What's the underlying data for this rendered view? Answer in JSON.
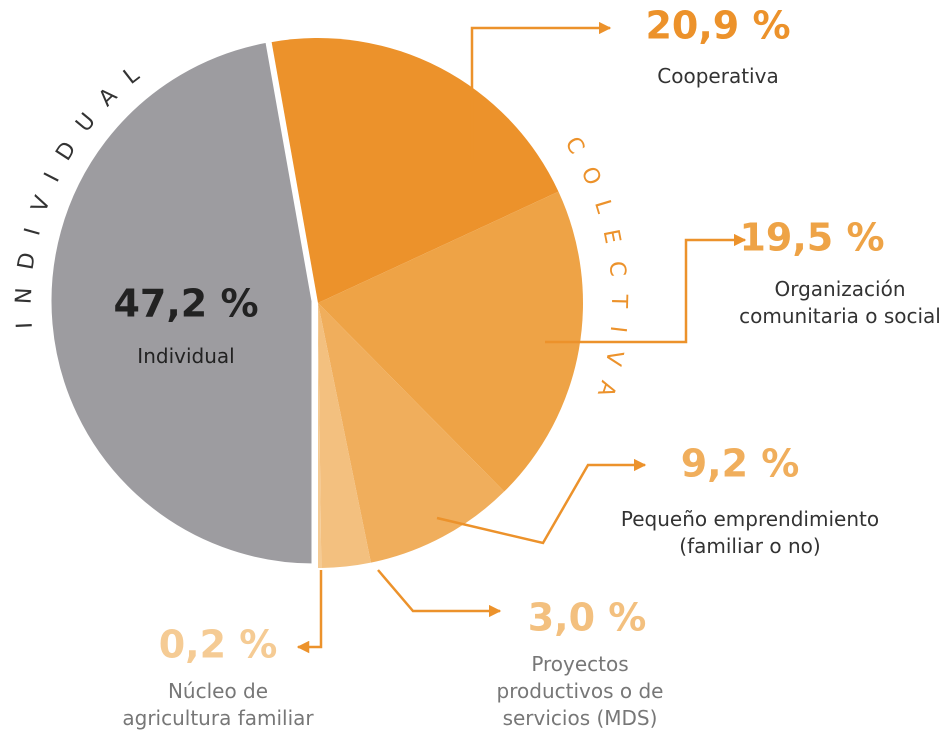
{
  "chart_data": {
    "type": "pie",
    "categories": [
      "Cooperativa",
      "Organización\ncomunitaria o social",
      "Pequeño emprendimiento\n(familiar o no)",
      "Proyectos\nproductivos o de\nservicios (MDS)",
      "Núcleo de\nagricultura familiar",
      "Individual"
    ],
    "values": [
      20.9,
      19.5,
      9.2,
      3.0,
      0.2,
      47.2
    ],
    "value_labels": [
      "20,9 %",
      "19,5 %",
      "9,2 %",
      "3,0 %",
      "0,2 %",
      "47,2 %"
    ],
    "colors": [
      "#ec922b",
      "#eea346",
      "#f0ae5c",
      "#f3c07f",
      "#f5cb94",
      "#9d9ca0"
    ],
    "groups": [
      "COLECTIVA",
      "INDIVIDUAL"
    ]
  }
}
